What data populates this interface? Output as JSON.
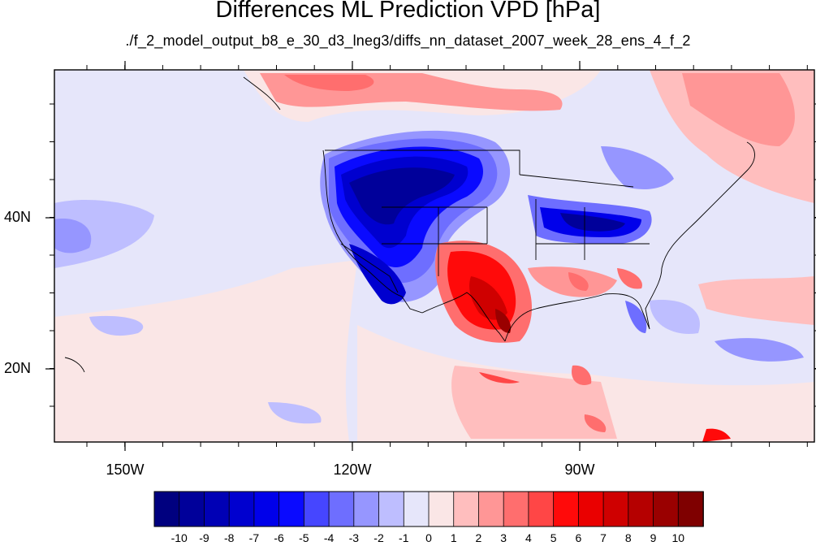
{
  "title": "Differences ML Prediction VPD [hPa]",
  "subtitle": "./f_2_model_output_b8_e_30_d3_lneg3/diffs_nn_dataset_2007_week_28_ens_4_f_2",
  "map": {
    "lon_labels": [
      "150W",
      "120W",
      "90W"
    ],
    "lat_labels": [
      "40N",
      "20N"
    ],
    "colorbar": {
      "labels": [
        "-10",
        "-9",
        "-8",
        "-7",
        "-6",
        "-5",
        "-4",
        "-3",
        "-2",
        "-1",
        "0",
        "1",
        "2",
        "3",
        "4",
        "5",
        "6",
        "7",
        "8",
        "9",
        "10"
      ],
      "colors": [
        "#00007f",
        "#00009a",
        "#0000b5",
        "#0000cf",
        "#0000ea",
        "#0a0aff",
        "#4646ff",
        "#6e6eff",
        "#9696ff",
        "#bebeff",
        "#e6e6fa",
        "#fae6e6",
        "#ffbebe",
        "#ff9696",
        "#ff6e6e",
        "#ff4646",
        "#ff0a0a",
        "#ea0000",
        "#cf0000",
        "#b50000",
        "#9a0000",
        "#7f0000"
      ]
    }
  }
}
